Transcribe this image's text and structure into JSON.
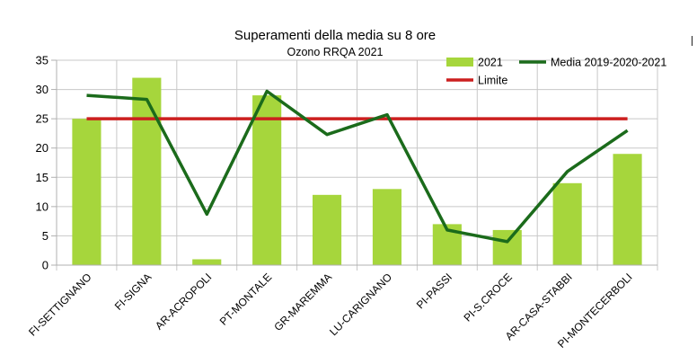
{
  "chart_data": {
    "type": "bar",
    "title": "Superamenti della media su 8 ore",
    "subtitle": "Ozono  RRQA 2021",
    "xlabel": "",
    "ylabel": "",
    "ylim": [
      0,
      35
    ],
    "yticks": [
      0,
      5,
      10,
      15,
      20,
      25,
      30,
      35
    ],
    "grid": true,
    "legend_position": "top-right",
    "categories": [
      "FI-SETTIGNANO",
      "FI-SIGNA",
      "AR-ACROPOLI",
      "PT-MONTALE",
      "GR-MAREMMA",
      "LU-CARIGNANO",
      "PI-PASSI",
      "PI-S.CROCE",
      "AR-CASA-STABBI",
      "PI-MONTECERBOLI"
    ],
    "series": [
      {
        "name": "2021",
        "kind": "bar",
        "color": "#a6d63c",
        "values": [
          25,
          32,
          1,
          29,
          12,
          13,
          7,
          6,
          14,
          19
        ]
      },
      {
        "name": "Media 2019-2020-2021",
        "kind": "line",
        "color": "#1b6b1b",
        "values": [
          29,
          28.3,
          8.7,
          29.7,
          22.3,
          25.7,
          6,
          4,
          16,
          23
        ]
      },
      {
        "name": "Limite",
        "kind": "line",
        "color": "#cc1f1f",
        "values": [
          25,
          25,
          25,
          25,
          25,
          25,
          25,
          25,
          25,
          25
        ]
      }
    ]
  }
}
